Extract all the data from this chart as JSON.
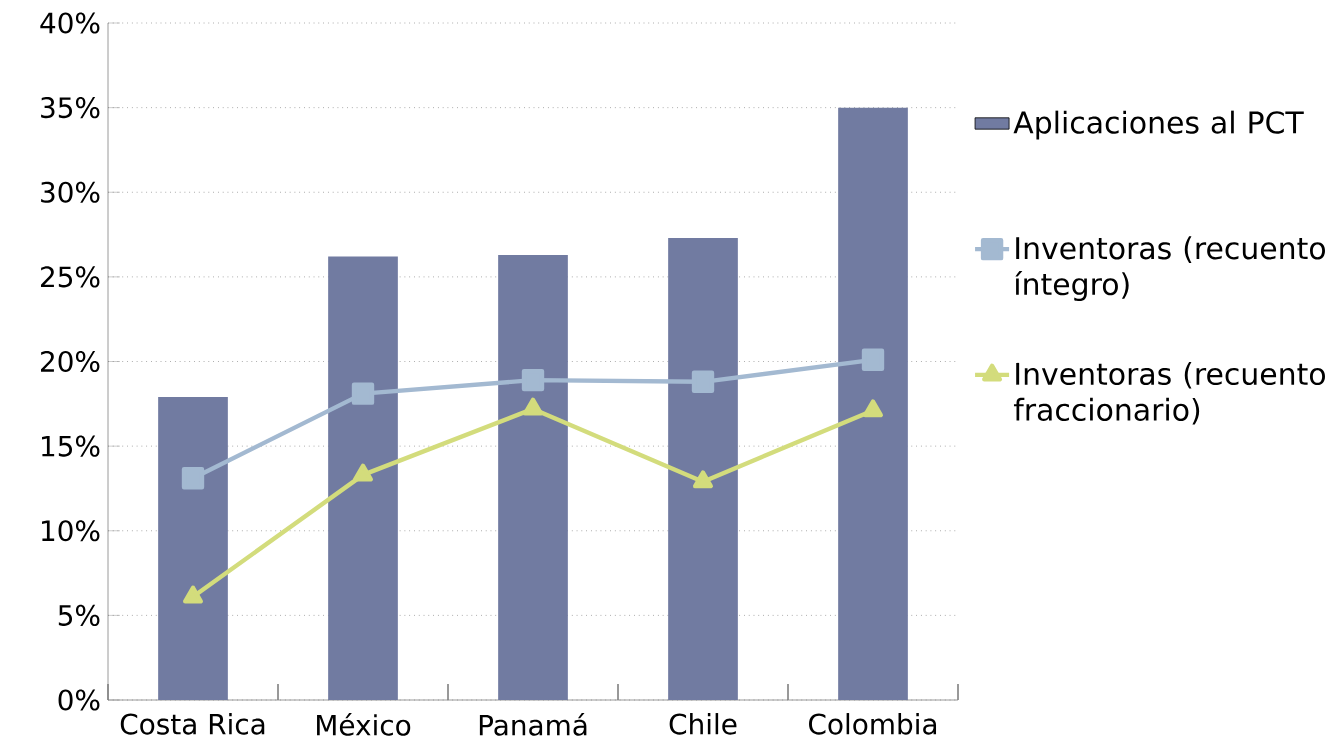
{
  "chart_data": {
    "type": "bar",
    "categories": [
      "Costa Rica",
      "México",
      "Panamá",
      "Chile",
      "Colombia"
    ],
    "series": [
      {
        "name": "Aplicaciones al PCT",
        "color": "#717ba1",
        "values": [
          17.9,
          26.2,
          26.3,
          27.3,
          35.0
        ]
      },
      {
        "name": "Inventoras (recuento íntegro)",
        "type": "line",
        "marker": "square",
        "color": "#a3b9d1",
        "values": [
          13.1,
          18.1,
          18.9,
          18.8,
          20.1
        ]
      },
      {
        "name": "Inventoras (recuento fraccionario)",
        "type": "line",
        "marker": "triangle",
        "color": "#d3dc7c",
        "values": [
          6.1,
          13.3,
          17.2,
          12.9,
          17.1
        ]
      }
    ],
    "ylim": [
      0,
      40
    ],
    "yticks": [
      {
        "value": 0,
        "label": "0%"
      },
      {
        "value": 5,
        "label": "5%"
      },
      {
        "value": 10,
        "label": "10%"
      },
      {
        "value": 15,
        "label": "15%"
      },
      {
        "value": 20,
        "label": "20%"
      },
      {
        "value": 25,
        "label": "25%"
      },
      {
        "value": 30,
        "label": "30%"
      },
      {
        "value": 35,
        "label": "35%"
      },
      {
        "value": 40,
        "label": "40%"
      }
    ],
    "grid": "y",
    "legend": "right"
  }
}
